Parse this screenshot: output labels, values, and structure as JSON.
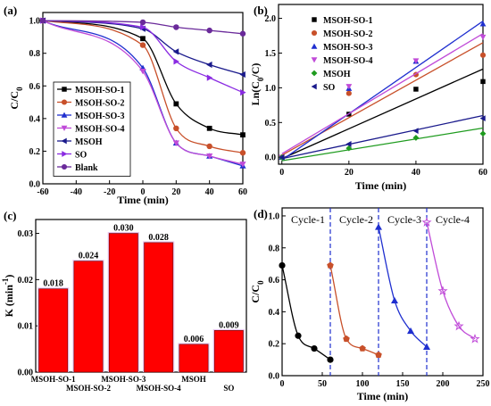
{
  "chart_data": [
    {
      "type": "line",
      "panel_label": "(a)",
      "xlabel": "Time (min)",
      "ylabel_main": "C/C",
      "ylabel_sub": "0",
      "xlim": [
        -60,
        60
      ],
      "ylim": [
        0,
        1.05
      ],
      "xticks": [
        "-60",
        "-40",
        "-20",
        "0",
        "20",
        "40",
        "60"
      ],
      "yticks": [
        "0.0",
        "0.2",
        "0.4",
        "0.6",
        "0.8",
        "1.0"
      ],
      "legend_position": "bottom-left",
      "series": [
        {
          "name": "MSOH-SO-1",
          "color": "#000000",
          "marker": "square",
          "x": [
            -60,
            0,
            20,
            40,
            60
          ],
          "y": [
            1.0,
            0.89,
            0.49,
            0.34,
            0.3
          ]
        },
        {
          "name": "MSOH-SO-2",
          "color": "#c8502a",
          "marker": "circle",
          "x": [
            -60,
            0,
            20,
            40,
            60
          ],
          "y": [
            1.0,
            0.85,
            0.34,
            0.23,
            0.19
          ]
        },
        {
          "name": "MSOH-SO-3",
          "color": "#1f2fcf",
          "marker": "triangle-up",
          "x": [
            -60,
            0,
            20,
            40,
            60
          ],
          "y": [
            1.0,
            0.71,
            0.25,
            0.17,
            0.11
          ]
        },
        {
          "name": "MSOH-SO-4",
          "color": "#c04bd8",
          "marker": "triangle-down",
          "x": [
            -60,
            0,
            20,
            40,
            60
          ],
          "y": [
            1.0,
            0.69,
            0.25,
            0.17,
            0.12
          ]
        },
        {
          "name": "MSOH",
          "color": "#1a1a8c",
          "marker": "triangle-left",
          "x": [
            -60,
            0,
            20,
            40,
            60
          ],
          "y": [
            1.0,
            0.95,
            0.81,
            0.73,
            0.67
          ]
        },
        {
          "name": "SO",
          "color": "#8a2be2",
          "marker": "triangle-right",
          "x": [
            -60,
            0,
            20,
            40,
            60
          ],
          "y": [
            1.0,
            0.96,
            0.75,
            0.65,
            0.56
          ]
        },
        {
          "name": "Blank",
          "color": "#6a2a9a",
          "marker": "circle",
          "x": [
            -60,
            0,
            20,
            40,
            60
          ],
          "y": [
            1.0,
            0.99,
            0.96,
            0.94,
            0.92
          ]
        }
      ]
    },
    {
      "type": "scatter",
      "panel_label": "(b)",
      "xlabel": "Time (min)",
      "ylabel_main": "Ln(C",
      "ylabel_sub": "0",
      "ylabel_end": "/C)",
      "xlim": [
        -1,
        60
      ],
      "ylim": [
        -0.1,
        2.2
      ],
      "xticks": [
        "0",
        "20",
        "40",
        "60"
      ],
      "yticks": [
        "0.0",
        "0.5",
        "1.0",
        "1.5",
        "2.0"
      ],
      "legend_position": "top-left",
      "series": [
        {
          "name": "MSOH-SO-1",
          "color": "#000000",
          "marker": "square",
          "x": [
            0,
            20,
            40,
            60
          ],
          "y": [
            0,
            0.62,
            0.98,
            1.09
          ],
          "fit": [
            -0.02,
            1.27
          ]
        },
        {
          "name": "MSOH-SO-2",
          "color": "#c8502a",
          "marker": "circle",
          "x": [
            0,
            20,
            40,
            60
          ],
          "y": [
            0,
            0.92,
            1.19,
            1.47
          ],
          "fit": [
            0.03,
            1.65
          ]
        },
        {
          "name": "MSOH-SO-3",
          "color": "#1f2fcf",
          "marker": "triangle-up",
          "x": [
            0,
            20,
            40,
            60
          ],
          "y": [
            0,
            0.99,
            1.38,
            1.92
          ],
          "fit": [
            -0.04,
            1.96
          ]
        },
        {
          "name": "MSOH-SO-4",
          "color": "#c04bd8",
          "marker": "triangle-down",
          "x": [
            0,
            20,
            40,
            60
          ],
          "y": [
            0,
            1.02,
            1.39,
            1.73
          ],
          "fit": [
            0.05,
            1.78
          ]
        },
        {
          "name": "MSOH",
          "color": "#1e9b1e",
          "marker": "diamond",
          "x": [
            0,
            20,
            40,
            60
          ],
          "y": [
            0,
            0.13,
            0.28,
            0.34
          ],
          "fit": [
            -0.05,
            0.42
          ]
        },
        {
          "name": "SO",
          "color": "#1a1a8c",
          "marker": "triangle-left",
          "x": [
            0,
            20,
            40,
            60
          ],
          "y": [
            0,
            0.19,
            0.38,
            0.56
          ],
          "fit": [
            -0.02,
            0.6
          ]
        }
      ]
    },
    {
      "type": "bar",
      "panel_label": "(c)",
      "ylabel_main": "K (min",
      "ylabel_sup": "-1",
      "ylabel_end": ")",
      "ylim": [
        0,
        0.033
      ],
      "yticks": [
        "0.00",
        "0.01",
        "0.02",
        "0.03"
      ],
      "bar_color": "#ff0000",
      "categories": [
        "MSOH-SO-1",
        "MSOH-SO-2",
        "MSOH-SO-3",
        "MSOH-SO-4",
        "MSOH",
        "SO"
      ],
      "values": [
        0.018,
        0.024,
        0.03,
        0.028,
        0.006,
        0.009
      ],
      "value_labels": [
        "0.018",
        "0.024",
        "0.030",
        "0.028",
        "0.006",
        "0.009"
      ]
    },
    {
      "type": "line",
      "panel_label": "(d)",
      "xlabel": "Time (min)",
      "ylabel_main": "C/C",
      "ylabel_sub": "0",
      "xlim": [
        0,
        250
      ],
      "ylim": [
        0,
        1.05
      ],
      "xticks": [
        "0",
        "50",
        "100",
        "150",
        "200",
        "250"
      ],
      "yticks": [
        "0.0",
        "0.2",
        "0.4",
        "0.6",
        "0.8",
        "1.0"
      ],
      "dividers": [
        60,
        120,
        180
      ],
      "series": [
        {
          "name": "Cycle-1",
          "color": "#000000",
          "marker": "circle",
          "x": [
            0,
            20,
            40,
            60
          ],
          "y": [
            0.69,
            0.25,
            0.17,
            0.1
          ]
        },
        {
          "name": "Cycle-2",
          "color": "#c8502a",
          "marker": "pentagon",
          "x": [
            60,
            80,
            100,
            120
          ],
          "y": [
            0.69,
            0.23,
            0.17,
            0.13
          ]
        },
        {
          "name": "Cycle-3",
          "color": "#1f2fcf",
          "marker": "triangle-up",
          "x": [
            120,
            140,
            160,
            180
          ],
          "y": [
            0.93,
            0.47,
            0.28,
            0.18
          ]
        },
        {
          "name": "Cycle-4",
          "color": "#c04bd8",
          "marker": "star",
          "x": [
            180,
            200,
            220,
            240
          ],
          "y": [
            0.96,
            0.53,
            0.31,
            0.23
          ]
        }
      ]
    }
  ]
}
